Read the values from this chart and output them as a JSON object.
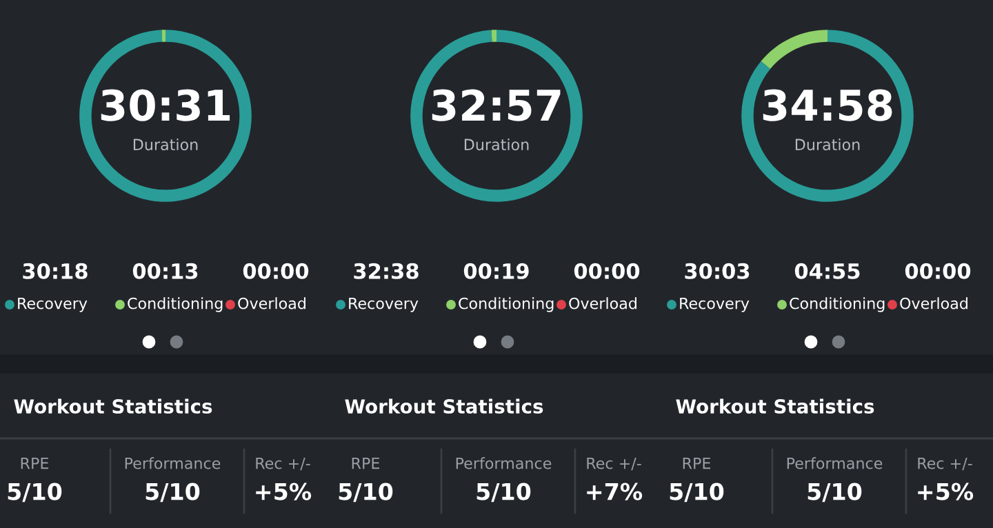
{
  "chart_data": [
    {
      "type": "donut",
      "categories": [
        "Recovery",
        "Conditioning",
        "Overload"
      ],
      "values": [
        1818,
        13,
        0
      ],
      "value_labels": [
        "30:18",
        "00:13",
        "00:00"
      ],
      "colors": [
        "#2a9d98",
        "#8fd16a",
        "#e0404a"
      ],
      "annotations": [
        "30:31",
        "Duration"
      ],
      "legend": "bottom"
    },
    {
      "type": "donut",
      "categories": [
        "Recovery",
        "Conditioning",
        "Overload"
      ],
      "values": [
        1958,
        19,
        0
      ],
      "value_labels": [
        "32:38",
        "00:19",
        "00:00"
      ],
      "colors": [
        "#2a9d98",
        "#8fd16a",
        "#e0404a"
      ],
      "annotations": [
        "32:57",
        "Duration"
      ],
      "legend": "bottom"
    },
    {
      "type": "donut",
      "categories": [
        "Recovery",
        "Conditioning",
        "Overload"
      ],
      "values": [
        1803,
        295,
        0
      ],
      "value_labels": [
        "30:03",
        "04:55",
        "00:00"
      ],
      "colors": [
        "#2a9d98",
        "#8fd16a",
        "#e0404a"
      ],
      "annotations": [
        "34:58",
        "Duration"
      ],
      "legend": "bottom"
    },
    {
      "type": "other",
      "title": "Workout Statistics",
      "annotations": [
        "RPE",
        "5/10",
        "Performance",
        "5/10",
        "Rec +/-",
        "+5%"
      ]
    },
    {
      "type": "other",
      "title": "Workout Statistics",
      "annotations": [
        "RPE",
        "5/10",
        "Performance",
        "5/10",
        "Rec +/-",
        "+7%"
      ]
    },
    {
      "type": "other",
      "title": "Workout Statistics",
      "annotations": [
        "RPE",
        "5/10",
        "Performance",
        "5/10",
        "Rec +/-",
        "+5%"
      ]
    }
  ]
}
